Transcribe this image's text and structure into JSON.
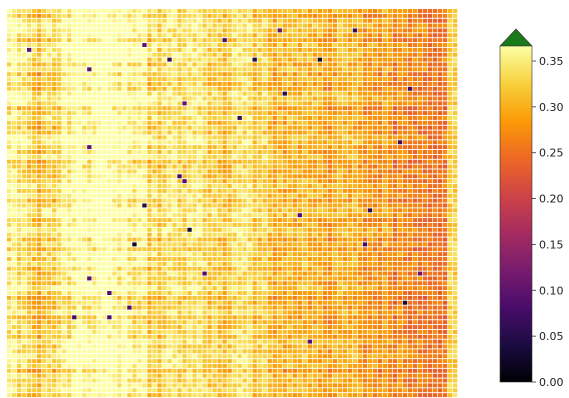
{
  "chart_data": {
    "type": "heatmap",
    "title": "",
    "xlabel": "",
    "ylabel": "",
    "colormap": "inferno",
    "colorbar": {
      "range": [
        0.0,
        0.35
      ],
      "ticks": [
        "0.00",
        "0.05",
        "0.10",
        "0.15",
        "0.20",
        "0.25",
        "0.30",
        "0.35"
      ],
      "tick_values": [
        0.0,
        0.05,
        0.1,
        0.15,
        0.2,
        0.25,
        0.3,
        0.35
      ],
      "extend": "max",
      "over_color": "#1a7a1a"
    },
    "grid": true,
    "grid_color": "#ffffff",
    "n_rows": 80,
    "n_cols": 90,
    "column_profile": [
      0.33,
      0.3,
      0.31,
      0.34,
      0.35,
      0.36,
      0.35,
      0.34,
      0.31,
      0.33,
      0.32,
      0.3,
      0.31,
      0.32,
      0.3,
      0.29,
      0.29,
      0.29,
      0.28,
      0.28,
      0.27,
      0.27,
      0.26,
      0.26,
      0.26,
      0.25
    ],
    "colormap_stops": [
      "#000004",
      "#1b0c41",
      "#4a0c6b",
      "#781c6d",
      "#a52c60",
      "#cf4446",
      "#ed6925",
      "#fb9b06",
      "#f7d13d",
      "#fcffa4"
    ]
  }
}
